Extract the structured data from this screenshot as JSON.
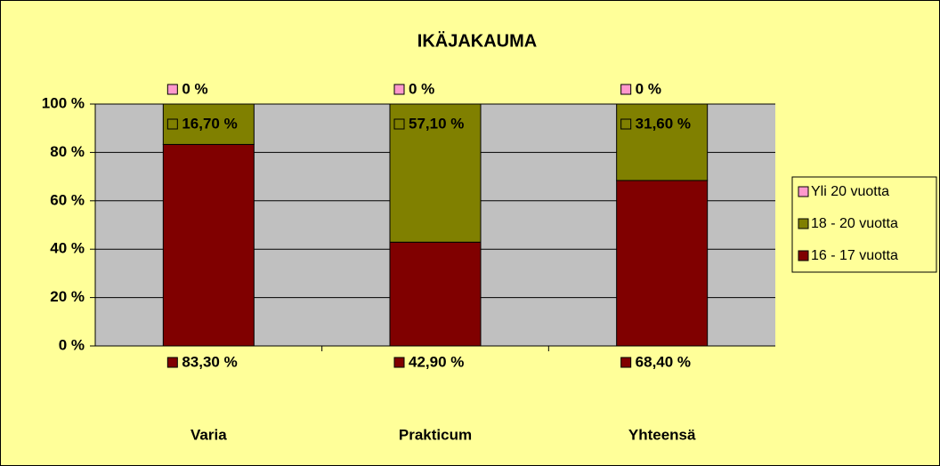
{
  "chart_data": {
    "type": "stacked_bar",
    "title": "IKÄJAKAUMA",
    "categories": [
      "Varia",
      "Prakticum",
      "Yhteensä"
    ],
    "series": [
      {
        "name": "16 - 17 vuotta",
        "color": "#800000",
        "values": [
          83.3,
          42.9,
          68.4
        ],
        "value_labels": [
          "83,30 %",
          "42,90 %",
          "68,40 %"
        ]
      },
      {
        "name": "18 - 20 vuotta",
        "color": "#808000",
        "values": [
          16.7,
          57.1,
          31.6
        ],
        "value_labels": [
          "16,70 %",
          "57,10 %",
          "31,60 %"
        ]
      },
      {
        "name": "Yli 20 vuotta",
        "color": "#ff99cc",
        "values": [
          0,
          0,
          0
        ],
        "value_labels": [
          "0 %",
          "0 %",
          "0 %"
        ]
      }
    ],
    "ylim": [
      0,
      100
    ],
    "yticks": [
      {
        "value": 0,
        "label": "0 %"
      },
      {
        "value": 20,
        "label": "20 %"
      },
      {
        "value": 40,
        "label": "40 %"
      },
      {
        "value": 60,
        "label": "60 %"
      },
      {
        "value": 80,
        "label": "80 %"
      },
      {
        "value": 100,
        "label": "100 %"
      }
    ],
    "grid": true,
    "legend": "right"
  }
}
